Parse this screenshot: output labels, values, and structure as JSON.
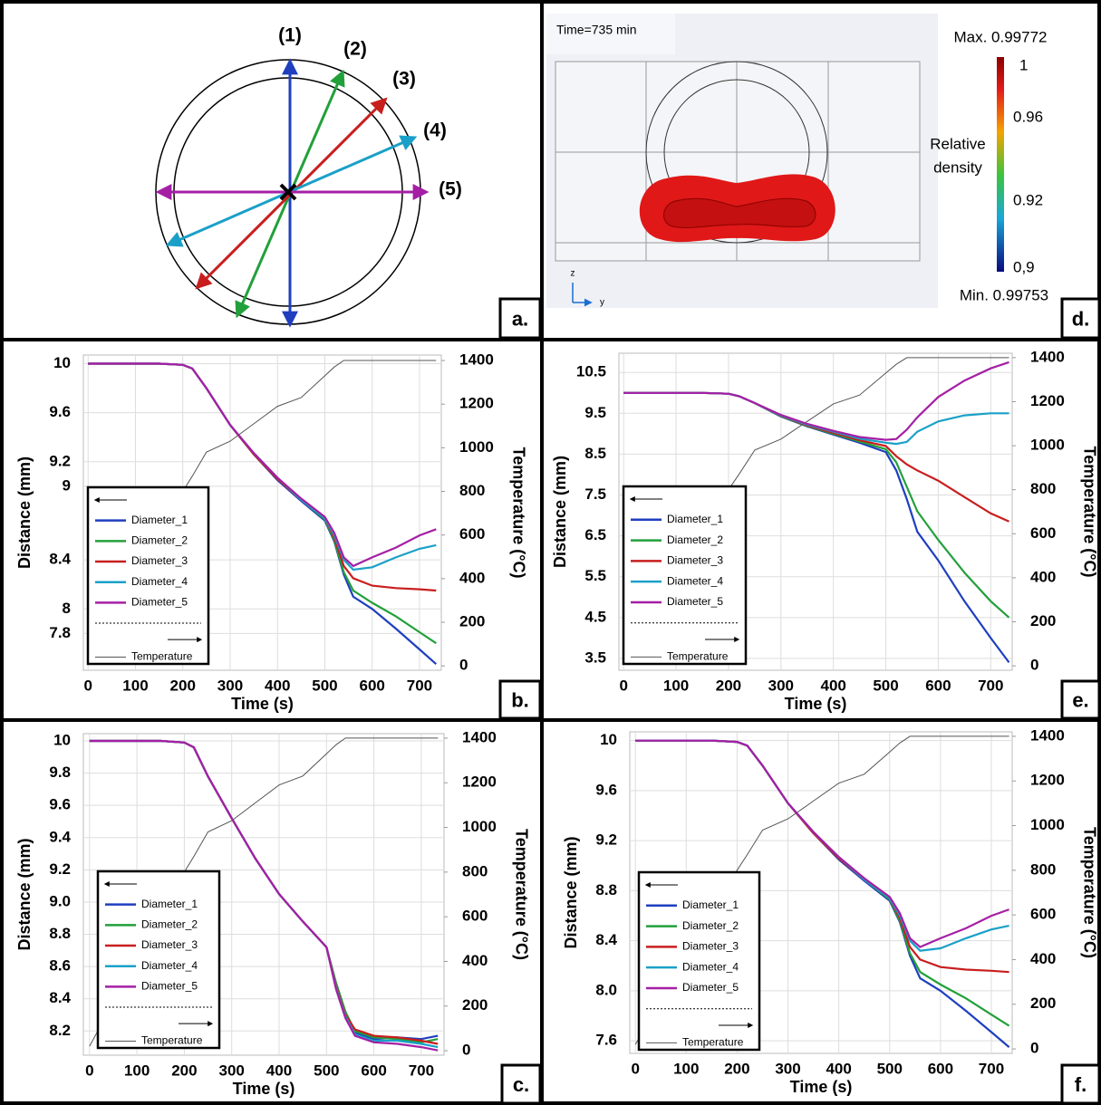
{
  "diagram": {
    "panel_label": "a.",
    "arrows": [
      {
        "label": "(1)",
        "color": "#1f3fbf"
      },
      {
        "label": "(2)",
        "color": "#22a03a"
      },
      {
        "label": "(3)",
        "color": "#c81e1e"
      },
      {
        "label": "(4)",
        "color": "#1aa0c8"
      },
      {
        "label": "(5)",
        "color": "#a51fa5"
      }
    ]
  },
  "simulation": {
    "panel_label": "d.",
    "time": "Time=735 min",
    "max": "Max. 0.99772",
    "min": "Min. 0.99753",
    "colorbar_title": [
      "Relative",
      "density"
    ],
    "colorbar_ticks": [
      "1",
      "0.96",
      "0.92",
      "0,9"
    ],
    "axes": [
      "z",
      "y"
    ]
  },
  "chart_data": [
    {
      "type": "line",
      "panel_label": "b.",
      "xlabel": "Time (s)",
      "ylabel": "Distance (mm)",
      "y2label": "Temperature (°C)",
      "grid": true,
      "legend_loc": "lower left",
      "x": [
        0,
        100,
        150,
        200,
        220,
        250,
        300,
        350,
        400,
        450,
        500,
        520,
        540,
        560,
        600,
        650,
        700,
        735
      ],
      "xlim": [
        -10,
        746
      ],
      "xticks": [
        0,
        100,
        200,
        300,
        400,
        500,
        600,
        700
      ],
      "ylim": [
        7.5,
        10.07
      ],
      "yticks": [
        10,
        9.6,
        9.2,
        9,
        8.4,
        8,
        7.8
      ],
      "y2lim": [
        -20,
        1425
      ],
      "y2ticks": [
        0,
        200,
        400,
        600,
        800,
        1000,
        1200,
        1400
      ],
      "series": [
        {
          "name": "Diameter_1",
          "color": "#1f3fbf",
          "values": [
            10,
            10,
            10,
            9.99,
            9.96,
            9.8,
            9.5,
            9.26,
            9.05,
            8.88,
            8.72,
            8.55,
            8.28,
            8.1,
            8.0,
            7.84,
            7.67,
            7.55
          ]
        },
        {
          "name": "Diameter_2",
          "color": "#22a03a",
          "values": [
            10,
            10,
            10,
            9.99,
            9.96,
            9.8,
            9.5,
            9.26,
            9.06,
            8.89,
            8.73,
            8.56,
            8.3,
            8.15,
            8.05,
            7.94,
            7.81,
            7.72
          ]
        },
        {
          "name": "Diameter_3",
          "color": "#c81e1e",
          "values": [
            10,
            10,
            10,
            9.99,
            9.96,
            9.8,
            9.5,
            9.26,
            9.06,
            8.89,
            8.74,
            8.58,
            8.35,
            8.25,
            8.19,
            8.17,
            8.16,
            8.15
          ]
        },
        {
          "name": "Diameter_4",
          "color": "#1aa0c8",
          "values": [
            10,
            10,
            10,
            9.99,
            9.96,
            9.8,
            9.5,
            9.27,
            9.07,
            8.89,
            8.74,
            8.6,
            8.4,
            8.32,
            8.34,
            8.42,
            8.49,
            8.52
          ]
        },
        {
          "name": "Diameter_5",
          "color": "#a51fa5",
          "values": [
            10,
            10,
            10,
            9.99,
            9.96,
            9.8,
            9.5,
            9.27,
            9.07,
            8.9,
            8.75,
            8.62,
            8.42,
            8.35,
            8.42,
            8.5,
            8.6,
            8.65
          ]
        },
        {
          "name": "Temperature",
          "color": "#555555",
          "axis": "y2",
          "values": [
            20,
            410,
            605,
            800,
            870,
            980,
            1030,
            1110,
            1190,
            1230,
            1330,
            1370,
            1400,
            1400,
            1400,
            1400,
            1400,
            1400
          ]
        }
      ]
    },
    {
      "type": "line",
      "panel_label": "c.",
      "xlabel": "Time (s)",
      "ylabel": "Distance (mm)",
      "y2label": "Temperature (°C)",
      "grid": true,
      "legend_loc": "lower left",
      "x": [
        0,
        100,
        150,
        200,
        220,
        250,
        300,
        350,
        400,
        450,
        500,
        520,
        540,
        560,
        600,
        650,
        700,
        735
      ],
      "xlim": [
        -13,
        748
      ],
      "xticks": [
        0,
        100,
        200,
        300,
        400,
        500,
        600,
        700
      ],
      "ylim": [
        8.05,
        10.045
      ],
      "yticks": [
        10,
        9.8,
        9.6,
        9.4,
        9.2,
        {
          "value": 9,
          "label": "9.0"
        },
        8.8,
        8.6,
        8.4,
        8.2
      ],
      "y2lim": [
        -20,
        1420
      ],
      "y2ticks": [
        0,
        200,
        400,
        600,
        800,
        1000,
        1200,
        1400
      ],
      "series": [
        {
          "name": "Diameter_1",
          "color": "#1f3fbf",
          "values": [
            10,
            10,
            10,
            9.99,
            9.96,
            9.78,
            9.52,
            9.27,
            9.05,
            8.88,
            8.72,
            8.49,
            8.31,
            8.19,
            8.15,
            8.16,
            8.15,
            8.17
          ]
        },
        {
          "name": "Diameter_2",
          "color": "#22a03a",
          "values": [
            10,
            10,
            10,
            9.99,
            9.96,
            9.78,
            9.52,
            9.27,
            9.05,
            8.88,
            8.72,
            8.5,
            8.32,
            8.2,
            8.16,
            8.15,
            8.13,
            8.15
          ]
        },
        {
          "name": "Diameter_3",
          "color": "#c81e1e",
          "values": [
            10,
            10,
            10,
            9.99,
            9.96,
            9.78,
            9.52,
            9.27,
            9.05,
            8.88,
            8.72,
            8.48,
            8.3,
            8.21,
            8.17,
            8.16,
            8.14,
            8.12
          ]
        },
        {
          "name": "Diameter_4",
          "color": "#1aa0c8",
          "values": [
            10,
            10,
            10,
            9.99,
            9.96,
            9.78,
            9.52,
            9.27,
            9.05,
            8.88,
            8.72,
            8.47,
            8.29,
            8.18,
            8.14,
            8.14,
            8.12,
            8.1
          ]
        },
        {
          "name": "Diameter_5",
          "color": "#a51fa5",
          "values": [
            10,
            10,
            10,
            9.99,
            9.96,
            9.78,
            9.52,
            9.27,
            9.05,
            8.88,
            8.72,
            8.46,
            8.28,
            8.17,
            8.13,
            8.12,
            8.1,
            8.08
          ]
        },
        {
          "name": "Temperature",
          "color": "#555555",
          "axis": "y2",
          "values": [
            20,
            410,
            605,
            800,
            870,
            980,
            1030,
            1110,
            1190,
            1230,
            1330,
            1370,
            1400,
            1400,
            1400,
            1400,
            1400,
            1400
          ]
        }
      ]
    },
    {
      "type": "line",
      "panel_label": "e.",
      "xlabel": "Time (s)",
      "ylabel": "Distance (mm)",
      "y2label": "Temperature (°C)",
      "grid": true,
      "legend_loc": "lower left",
      "x": [
        0,
        100,
        150,
        200,
        220,
        250,
        300,
        350,
        400,
        450,
        500,
        520,
        540,
        560,
        600,
        650,
        700,
        735
      ],
      "xlim": [
        -9,
        741
      ],
      "xticks": [
        0,
        100,
        200,
        300,
        400,
        500,
        600,
        700
      ],
      "ylim": [
        3.21,
        10.97
      ],
      "yticks": [
        10.5,
        9.5,
        8.5,
        7.5,
        6.5,
        5.5,
        4.5,
        3.5
      ],
      "y2lim": [
        -20,
        1420
      ],
      "y2ticks": [
        0,
        200,
        400,
        600,
        800,
        1000,
        1200,
        1400
      ],
      "series": [
        {
          "name": "Diameter_1",
          "color": "#1f3fbf",
          "values": [
            10,
            10,
            10,
            9.98,
            9.92,
            9.75,
            9.42,
            9.18,
            8.98,
            8.78,
            8.55,
            8.1,
            7.4,
            6.6,
            5.9,
            4.9,
            4.0,
            3.4
          ]
        },
        {
          "name": "Diameter_2",
          "color": "#22a03a",
          "values": [
            10,
            10,
            10,
            9.98,
            9.92,
            9.75,
            9.43,
            9.19,
            9.0,
            8.81,
            8.62,
            8.3,
            7.7,
            7.1,
            6.4,
            5.6,
            4.9,
            4.5
          ]
        },
        {
          "name": "Diameter_3",
          "color": "#c81e1e",
          "values": [
            10,
            10,
            10,
            9.98,
            9.92,
            9.75,
            9.44,
            9.2,
            9.02,
            8.84,
            8.7,
            8.45,
            8.25,
            8.1,
            7.85,
            7.45,
            7.05,
            6.85
          ]
        },
        {
          "name": "Diameter_4",
          "color": "#1aa0c8",
          "values": [
            10,
            10,
            10,
            9.98,
            9.92,
            9.75,
            9.45,
            9.22,
            9.05,
            8.88,
            8.78,
            8.75,
            8.8,
            9.05,
            9.3,
            9.45,
            9.5,
            9.5
          ]
        },
        {
          "name": "Diameter_5",
          "color": "#a51fa5",
          "values": [
            10,
            10,
            10,
            9.98,
            9.92,
            9.75,
            9.46,
            9.24,
            9.07,
            8.92,
            8.85,
            8.87,
            9.1,
            9.4,
            9.9,
            10.3,
            10.6,
            10.75
          ]
        },
        {
          "name": "Temperature",
          "color": "#555555",
          "axis": "y2",
          "values": [
            20,
            410,
            605,
            800,
            870,
            980,
            1030,
            1110,
            1190,
            1230,
            1330,
            1370,
            1400,
            1400,
            1400,
            1400,
            1400,
            1400
          ]
        }
      ]
    },
    {
      "type": "line",
      "panel_label": "f.",
      "xlabel": "Time (s)",
      "ylabel": "Distance (mm)",
      "y2label": "Temperature (°C)",
      "grid": true,
      "legend_loc": "lower left",
      "x": [
        0,
        100,
        150,
        200,
        220,
        250,
        300,
        350,
        400,
        450,
        500,
        520,
        540,
        560,
        600,
        650,
        700,
        735
      ],
      "xlim": [
        -11,
        741
      ],
      "xticks": [
        0,
        100,
        200,
        300,
        400,
        500,
        600,
        700
      ],
      "ylim": [
        7.5,
        10.07
      ],
      "yticks": [
        10,
        9.6,
        9.2,
        8.8,
        8.4,
        {
          "value": 8,
          "label": "8.0"
        },
        7.6
      ],
      "y2lim": [
        -20,
        1420
      ],
      "y2ticks": [
        0,
        200,
        400,
        600,
        800,
        1000,
        1200,
        1400
      ],
      "series": [
        {
          "name": "Diameter_1",
          "color": "#1f3fbf",
          "values": [
            10,
            10,
            10,
            9.99,
            9.96,
            9.8,
            9.5,
            9.26,
            9.05,
            8.88,
            8.72,
            8.55,
            8.28,
            8.1,
            8.0,
            7.84,
            7.67,
            7.55
          ]
        },
        {
          "name": "Diameter_2",
          "color": "#22a03a",
          "values": [
            10,
            10,
            10,
            9.99,
            9.96,
            9.8,
            9.5,
            9.26,
            9.06,
            8.89,
            8.73,
            8.56,
            8.3,
            8.15,
            8.05,
            7.94,
            7.81,
            7.72
          ]
        },
        {
          "name": "Diameter_3",
          "color": "#c81e1e",
          "values": [
            10,
            10,
            10,
            9.99,
            9.96,
            9.8,
            9.5,
            9.26,
            9.06,
            8.89,
            8.74,
            8.58,
            8.35,
            8.25,
            8.19,
            8.17,
            8.16,
            8.15
          ]
        },
        {
          "name": "Diameter_4",
          "color": "#1aa0c8",
          "values": [
            10,
            10,
            10,
            9.99,
            9.96,
            9.8,
            9.5,
            9.27,
            9.07,
            8.89,
            8.74,
            8.6,
            8.4,
            8.32,
            8.34,
            8.42,
            8.49,
            8.52
          ]
        },
        {
          "name": "Diameter_5",
          "color": "#a51fa5",
          "values": [
            10,
            10,
            10,
            9.99,
            9.96,
            9.8,
            9.5,
            9.27,
            9.07,
            8.9,
            8.75,
            8.62,
            8.42,
            8.35,
            8.42,
            8.5,
            8.6,
            8.65
          ]
        },
        {
          "name": "Temperature",
          "color": "#555555",
          "axis": "y2",
          "values": [
            20,
            410,
            605,
            800,
            870,
            980,
            1030,
            1110,
            1190,
            1230,
            1330,
            1370,
            1400,
            1400,
            1400,
            1400,
            1400,
            1400
          ]
        }
      ]
    }
  ]
}
